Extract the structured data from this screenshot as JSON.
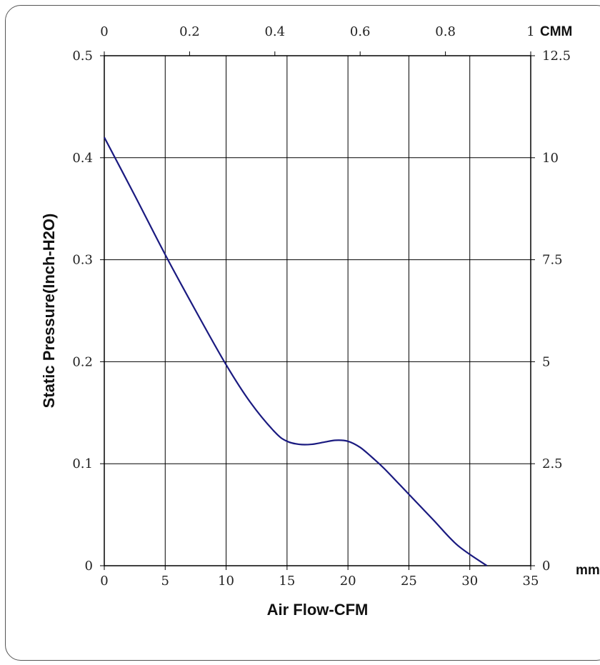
{
  "chart_data": {
    "type": "line",
    "xlabel": "Air Flow-CFM",
    "ylabel": "Static Pressure(Inch-H2O)",
    "xlim": [
      0,
      35
    ],
    "ylim": [
      0,
      0.5
    ],
    "x_ticks": [
      "0",
      "5",
      "10",
      "15",
      "20",
      "25",
      "30",
      "35"
    ],
    "y_ticks": [
      "0",
      "0.1",
      "0.2",
      "0.3",
      "0.4",
      "0.5"
    ],
    "x2_label": "CMM",
    "x2_lim": [
      0,
      1
    ],
    "x2_ticks": [
      "0",
      "0.2",
      "0.4",
      "0.6",
      "0.8",
      "1"
    ],
    "y2_label": "mm",
    "y2_lim": [
      0,
      12.5
    ],
    "y2_ticks": [
      "0",
      "2.5",
      "5",
      "7.5",
      "10",
      "12.5"
    ],
    "grid": true,
    "series": [
      {
        "color": "#1a1a80",
        "x": [
          0,
          2.5,
          5,
          7.5,
          10,
          12,
          14,
          15,
          16,
          17,
          18,
          19,
          20,
          21,
          22,
          23,
          25,
          27,
          29,
          31.4
        ],
        "y": [
          0.42,
          0.363,
          0.305,
          0.25,
          0.197,
          0.16,
          0.131,
          0.122,
          0.119,
          0.119,
          0.121,
          0.123,
          0.122,
          0.116,
          0.106,
          0.095,
          0.07,
          0.045,
          0.02,
          0
        ]
      }
    ]
  }
}
